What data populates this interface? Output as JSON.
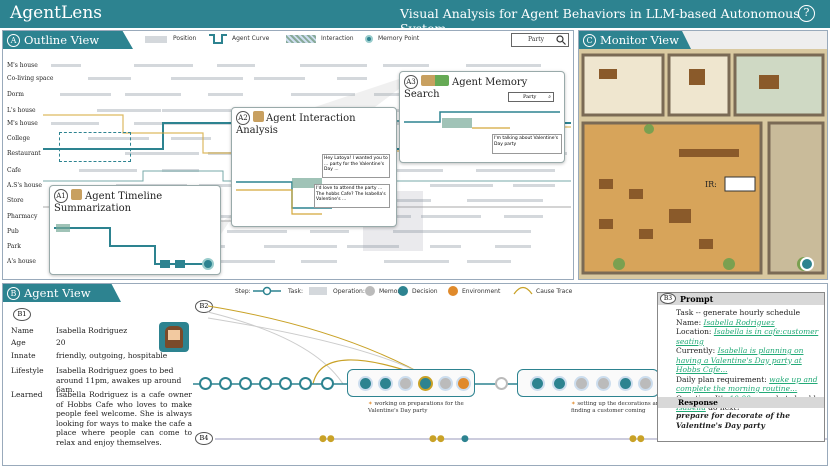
{
  "app": {
    "title": "AgentLens",
    "subtitle": "Visual Analysis for Agent Behaviors in LLM-based Autonomous System",
    "help": "?"
  },
  "outline": {
    "header": "Outline View",
    "badge": "A",
    "legend": {
      "position": "Position",
      "curve": "Agent Curve",
      "interaction": "Interaction",
      "memory": "Memory Point"
    },
    "search_value": "Party",
    "locations": [
      "M's house",
      "Co-living space",
      "Dorm",
      "L's house",
      "M's house",
      "College",
      "Restaurant",
      "Cafe",
      "A.S's house",
      "Store",
      "Pharmacy",
      "Pub",
      "Park",
      "A's house"
    ]
  },
  "cards": {
    "a1": {
      "badge": "A1",
      "title": "Agent Timeline Summarization"
    },
    "a2": {
      "badge": "A2",
      "title": "Agent Interaction Analysis",
      "bubble1": "Hey Latoya! I wanted you to ... party for the Valentine's Day ...",
      "bubble2": "I'd love to attend the party ...  The hobbs Cafe? The Isabella's Valentine's ..."
    },
    "a3": {
      "badge": "A3",
      "title": "Agent Memory Search",
      "search_value": "Party",
      "bubble": "I'm talking about Valentine's Day party"
    }
  },
  "monitor": {
    "header": "Monitor View",
    "badge": "C",
    "ir_label": "IR:"
  },
  "agent_view": {
    "header": "Agent View",
    "badge": "B",
    "legend": {
      "step": "Step:",
      "task": "Task:",
      "operation": "Operation:",
      "memory": "Memory",
      "decision": "Decision",
      "environment": "Environment",
      "cause": "Cause Trace"
    },
    "b1": "B1",
    "b2": "B2",
    "b3": "B3",
    "b4": "B4",
    "info": [
      {
        "label": "Name",
        "value": "Isabella Rodriguez"
      },
      {
        "label": "Age",
        "value": "20"
      },
      {
        "label": "Innate",
        "value": "friendly, outgoing, hospitable"
      },
      {
        "label": "Lifestyle",
        "value": "Isabella Rodriguez goes to bed around 11pm, awakes up around 6am."
      },
      {
        "label": "Learned",
        "value": "Isabella Rodriguez is a cafe owner of Hobbs Cafe who loves to make people feel welcome. She is always looking for ways to make the cafe a place where people can come to relax and enjoy themselves."
      }
    ],
    "task1": "working on preparations for the Valentine's Day party",
    "task2": "setting up the decorations and finding a customer coming",
    "prompt": {
      "title": "Prompt",
      "task": "Task -- generate hourly schedule",
      "name_lbl": "Name: ",
      "name": "Isabella Rodriguez",
      "loc_lbl": "Location: ",
      "loc": "Isabella is in cafe:customer seating",
      "cur_lbl": "Currently: ",
      "cur": "Isabella is planning on having a Valentine's Day party at Hobbs Cafe...",
      "plan_lbl": "Daily plan requirement: ",
      "plan": "wake up and complete the morning routine...",
      "q1": "Question: It's ",
      "q_time": "10:00 am",
      "q2": ", what should ",
      "q_name": "Isabella",
      "q3": " do next?",
      "resp_title": "Response",
      "resp": "prepare for decorate of the Valentine's Day party"
    }
  },
  "colors": {
    "teal": "#2d8390",
    "orange": "#e08a2b",
    "gold": "#c9a227"
  }
}
